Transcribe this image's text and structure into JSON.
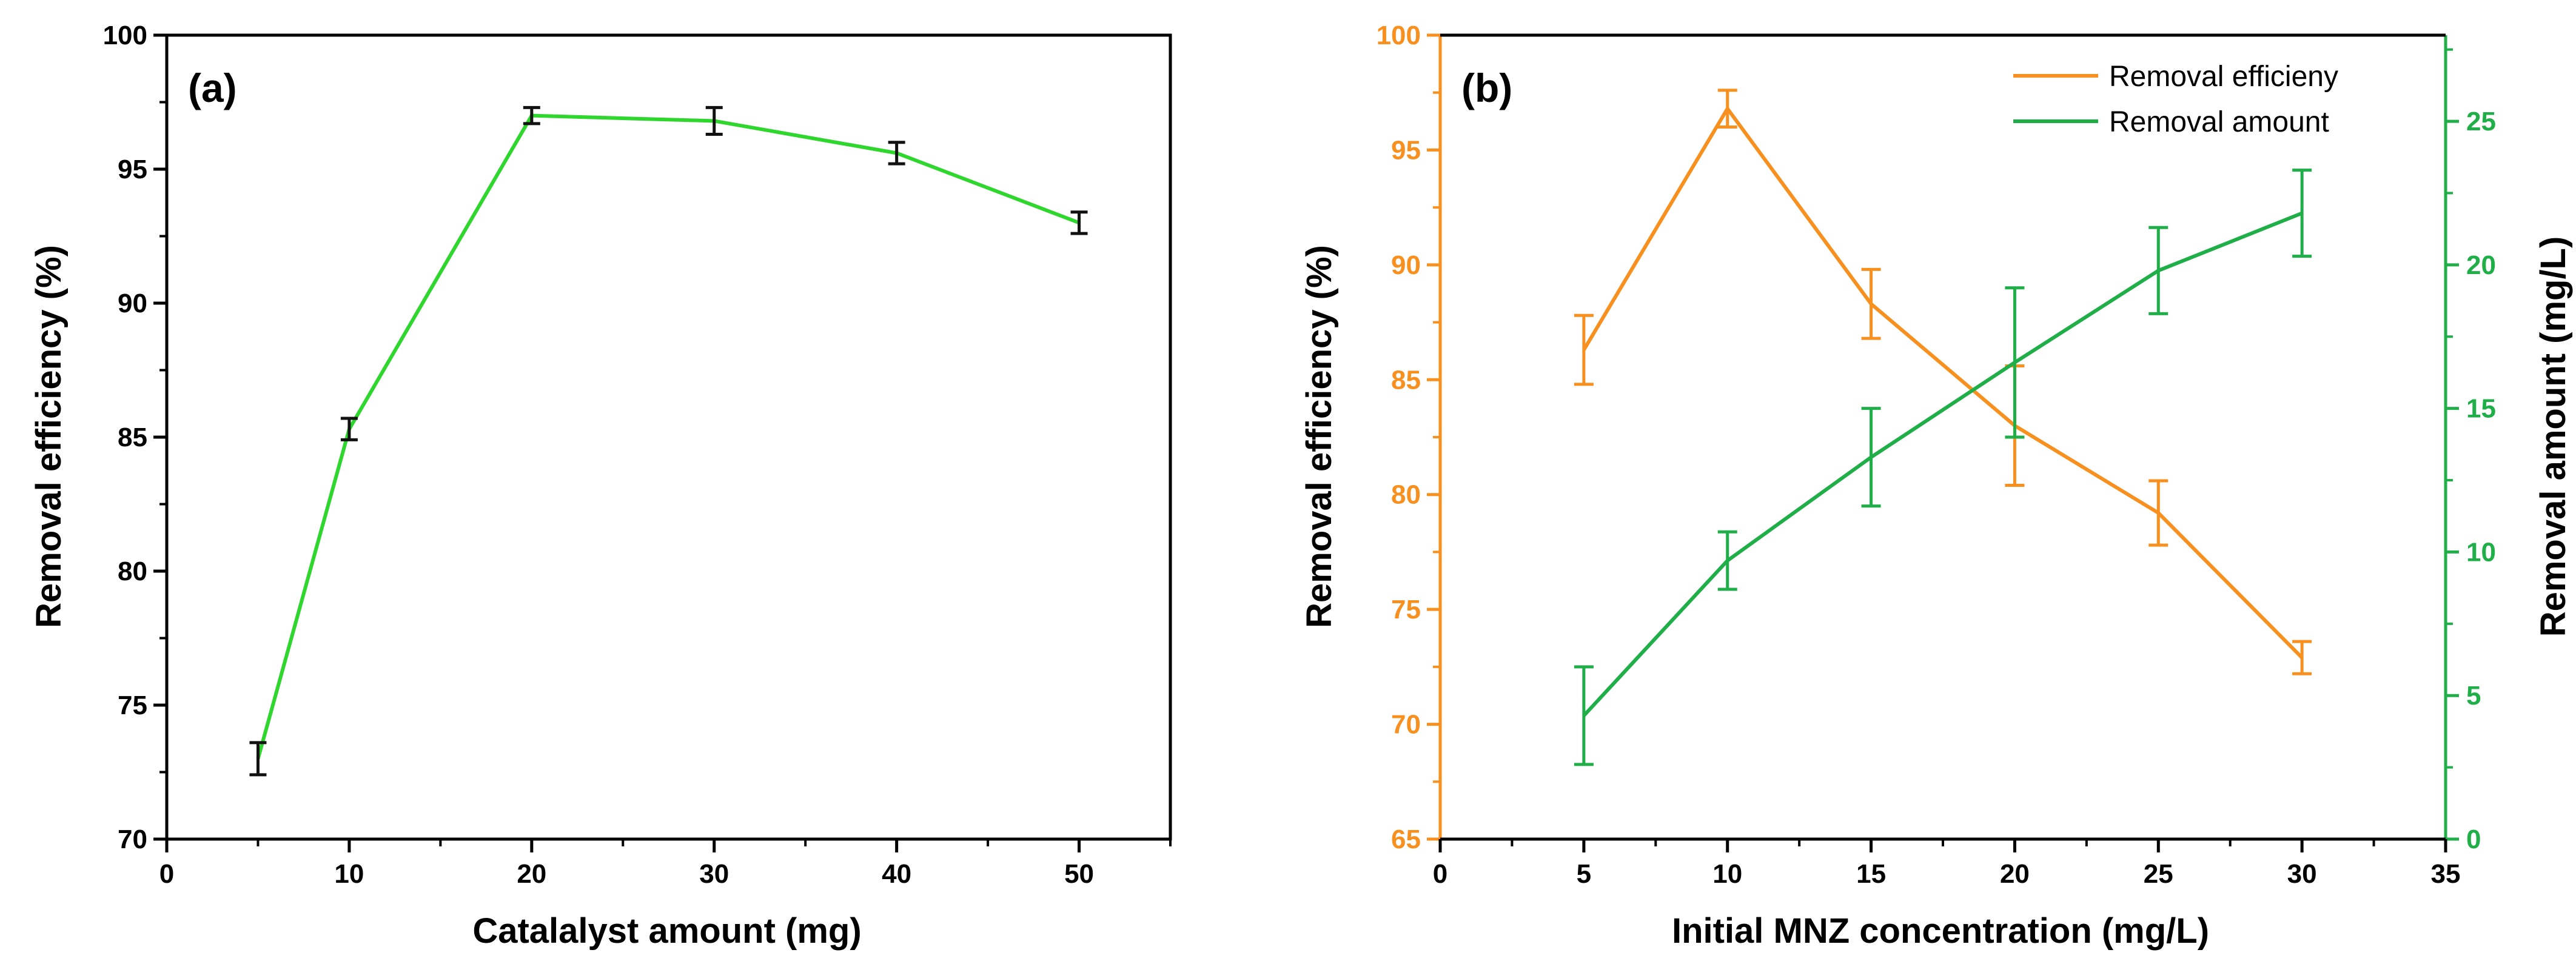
{
  "colors": {
    "a_line": "#2ed62e",
    "a_err": "#111111",
    "orange": "#f7901e",
    "green": "#1fae48",
    "axis": "#000000"
  },
  "chart_data": [
    {
      "type": "line",
      "panel_label": "(a)",
      "xlabel": "Catalalyst amount (mg)",
      "ylabel": "Removal efficiency (%)",
      "xlim": [
        0,
        55
      ],
      "ylim": [
        70,
        100
      ],
      "xticks": [
        "0",
        "10",
        "20",
        "30",
        "40",
        "50"
      ],
      "yticks": [
        "70",
        "75",
        "80",
        "85",
        "90",
        "95",
        "100"
      ],
      "series": [
        {
          "name": "Removal efficiency",
          "x": [
            5,
            10,
            20,
            30,
            40,
            50
          ],
          "y": [
            73.0,
            85.3,
            97.0,
            96.8,
            95.6,
            93.0
          ],
          "err": [
            0.6,
            0.4,
            0.3,
            0.5,
            0.4,
            0.4
          ]
        }
      ]
    },
    {
      "type": "line",
      "panel_label": "(b)",
      "xlabel": "Initial MNZ concentration (mg/L)",
      "ylabel": "Removal efficiency (%)",
      "y2label": "Removal amount (mg/L)",
      "xlim": [
        0,
        35
      ],
      "ylim": [
        65,
        100
      ],
      "y2lim": [
        0,
        28
      ],
      "xticks": [
        "0",
        "5",
        "10",
        "15",
        "20",
        "25",
        "30",
        "35"
      ],
      "yticks": [
        "65",
        "70",
        "75",
        "80",
        "85",
        "90",
        "95",
        "100"
      ],
      "y2ticks": [
        "0",
        "5",
        "10",
        "15",
        "20",
        "25"
      ],
      "legend": [
        "Removal efficieny",
        "Removal amount"
      ],
      "series": [
        {
          "name": "Removal efficieny",
          "axis": "left",
          "x": [
            5,
            10,
            15,
            20,
            25,
            30
          ],
          "y": [
            86.3,
            96.8,
            88.3,
            83.0,
            79.2,
            72.9
          ],
          "err": [
            1.5,
            0.8,
            1.5,
            2.6,
            1.4,
            0.7
          ]
        },
        {
          "name": "Removal amount",
          "axis": "right",
          "x": [
            5,
            10,
            15,
            20,
            25,
            30
          ],
          "y": [
            4.3,
            9.7,
            13.3,
            16.6,
            19.8,
            21.8
          ],
          "err": [
            1.7,
            1.0,
            1.7,
            2.6,
            1.5,
            1.5
          ]
        }
      ]
    }
  ]
}
